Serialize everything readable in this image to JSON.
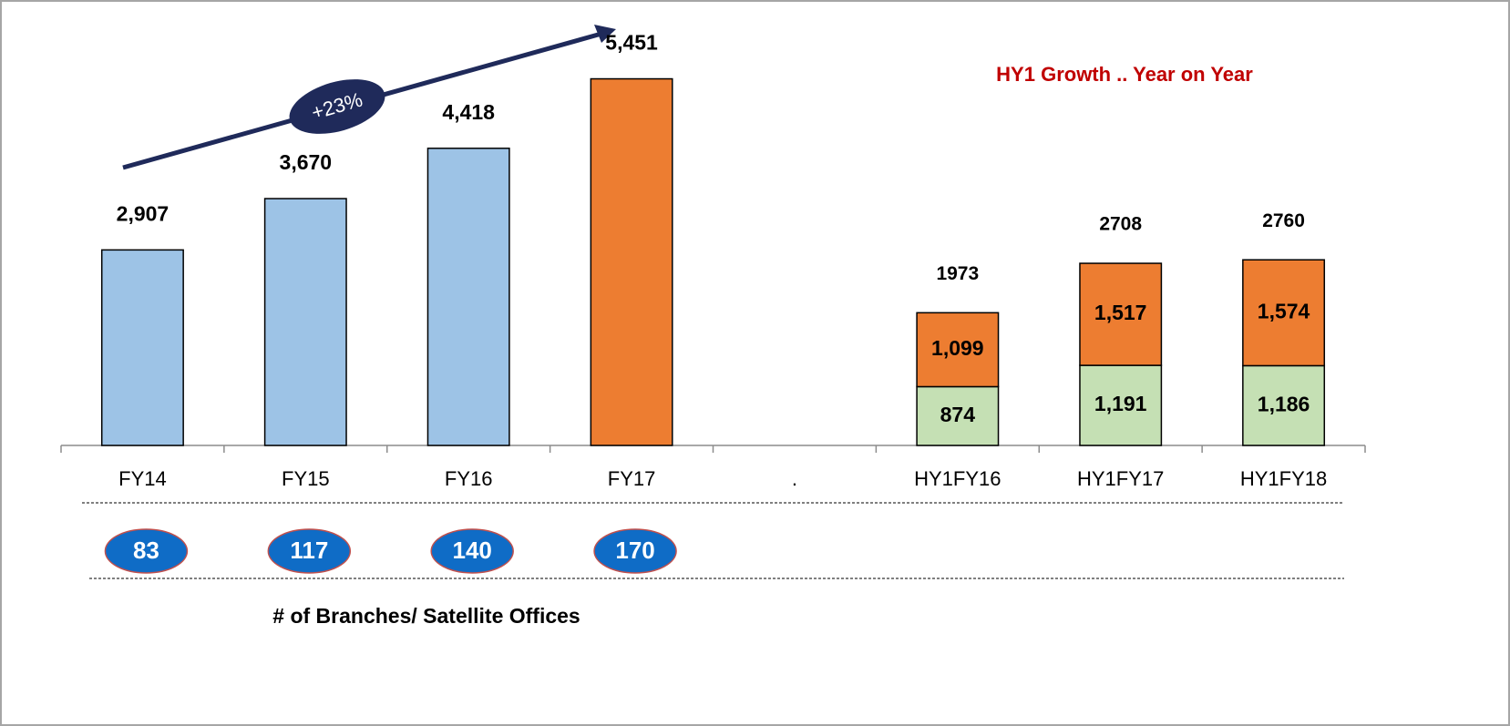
{
  "chart_data": {
    "type": "bar",
    "stacked": true,
    "title": "HY1 Growth .. Year on Year",
    "annotation": "+23%",
    "categories": [
      "FY14",
      "FY15",
      "FY16",
      "FY17",
      ".",
      "HY1FY16",
      "HY1FY17",
      "HY1FY18"
    ],
    "series": [
      {
        "color": "#9dc3e6",
        "label_position": "outside",
        "values": [
          2907,
          3670,
          4418,
          null,
          null,
          null,
          null,
          null
        ],
        "value_labels": [
          "2,907",
          "3,670",
          "4,418",
          null,
          null,
          null,
          null,
          null
        ]
      },
      {
        "color": "#ed7d31",
        "label_position": "outside",
        "values": [
          null,
          null,
          null,
          5451,
          null,
          null,
          null,
          null
        ],
        "value_labels": [
          null,
          null,
          null,
          "5,451",
          null,
          null,
          null,
          null
        ]
      },
      {
        "color": "#c5e0b4",
        "label_position": "inside",
        "values": [
          null,
          null,
          null,
          null,
          null,
          874,
          1191,
          1186
        ],
        "value_labels": [
          null,
          null,
          null,
          null,
          null,
          "874",
          "1,191",
          "1,186"
        ]
      },
      {
        "color": "#ed7d31",
        "label_position": "inside",
        "values": [
          null,
          null,
          null,
          null,
          null,
          1099,
          1517,
          1574
        ],
        "value_labels": [
          null,
          null,
          null,
          null,
          null,
          "1,099",
          "1,517",
          "1,574"
        ]
      }
    ],
    "totals": [
      null,
      null,
      null,
      null,
      null,
      1973,
      2708,
      2760
    ],
    "ylim": [
      0,
      6000
    ],
    "branches": {
      "title": "# of Branches/ Satellite Offices",
      "values": [
        83,
        117,
        140,
        170
      ]
    }
  }
}
